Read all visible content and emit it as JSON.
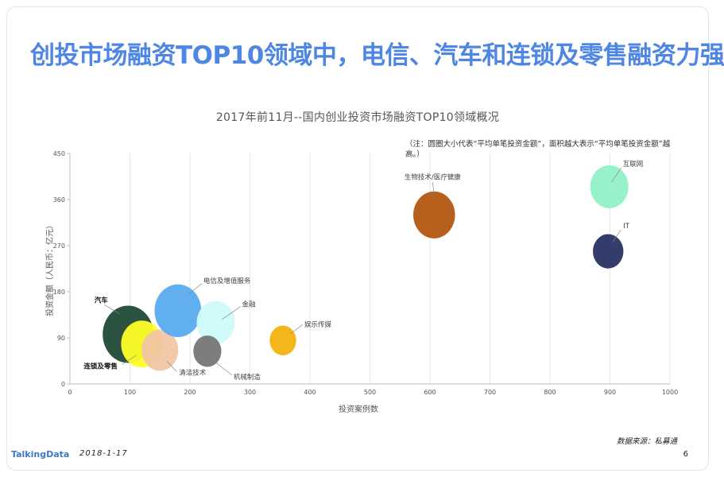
{
  "slide": {
    "title": "创投市场融资TOP10领域中，电信、汽车和连锁及零售融资力强",
    "note": "（注：圆圈大小代表“平均单笔投资金额”，面积越大表示“平均单笔投资金额”越高。）",
    "source": "数据来源：私募通",
    "logo": "TalkingData",
    "date": "2018-1-17",
    "page_number": "6"
  },
  "chart_data": {
    "type": "scatter",
    "title": "2017年前11月--国内创业投资市场融资TOP10领域概况",
    "xlabel": "投资案例数",
    "ylabel": "投资金额（人民币：亿元）",
    "xlim": [
      0,
      1000
    ],
    "ylim": [
      0,
      450
    ],
    "xticks": [
      0,
      100,
      200,
      300,
      400,
      500,
      600,
      700,
      800,
      900,
      1000
    ],
    "yticks": [
      0,
      90,
      180,
      270,
      360,
      450
    ],
    "grid": "vertical",
    "points": [
      {
        "label": "汽车",
        "x": 97,
        "y": 97,
        "size": 1.0,
        "color": "#214a36"
      },
      {
        "label": "连锁及零售",
        "x": 120,
        "y": 78,
        "size": 0.82,
        "color": "#ffff27"
      },
      {
        "label": "清洁技术",
        "x": 150,
        "y": 66,
        "size": 0.72,
        "color": "#f1c6a4"
      },
      {
        "label": "电信及增值服务",
        "x": 180,
        "y": 143,
        "size": 0.92,
        "color": "#5aabef"
      },
      {
        "label": "金融",
        "x": 243,
        "y": 120,
        "size": 0.75,
        "color": "#cdfbfa"
      },
      {
        "label": "机械制造",
        "x": 229,
        "y": 64,
        "size": 0.55,
        "color": "#767676"
      },
      {
        "label": "娱乐传媒",
        "x": 355,
        "y": 85,
        "size": 0.52,
        "color": "#f2b211"
      },
      {
        "label": "生物技术/医疗健康",
        "x": 607,
        "y": 330,
        "size": 0.82,
        "color": "#b35712"
      },
      {
        "label": "IT",
        "x": 897,
        "y": 259,
        "size": 0.6,
        "color": "#283262"
      },
      {
        "label": "互联网",
        "x": 899,
        "y": 385,
        "size": 0.75,
        "color": "#91f1c7"
      }
    ]
  }
}
